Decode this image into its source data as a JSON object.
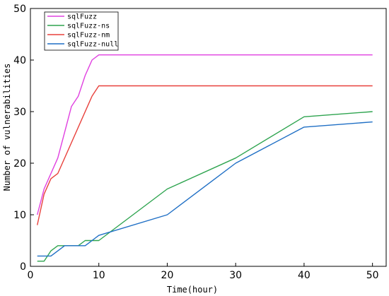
{
  "chart_data": {
    "type": "line",
    "title": "",
    "xlabel": "Time(hour)",
    "ylabel": "Number of vulnerabilities",
    "xlim": [
      0,
      52
    ],
    "ylim": [
      0,
      50
    ],
    "xticks": [
      0,
      10,
      20,
      30,
      40,
      50
    ],
    "yticks": [
      0,
      10,
      20,
      30,
      40,
      50
    ],
    "grid": false,
    "legend_position": "top-left",
    "series": [
      {
        "name": "sqlFuzz",
        "color": "#e040e0",
        "points": [
          [
            1,
            10
          ],
          [
            2,
            15
          ],
          [
            3,
            18
          ],
          [
            4,
            21
          ],
          [
            5,
            26
          ],
          [
            6,
            31
          ],
          [
            7,
            33
          ],
          [
            8,
            37
          ],
          [
            9,
            40
          ],
          [
            10,
            41
          ],
          [
            20,
            41
          ],
          [
            30,
            41
          ],
          [
            40,
            41
          ],
          [
            50,
            41
          ]
        ]
      },
      {
        "name": "sqlFuzz-ns",
        "color": "#2ea44f",
        "points": [
          [
            1,
            1
          ],
          [
            2,
            1
          ],
          [
            3,
            3
          ],
          [
            4,
            4
          ],
          [
            5,
            4
          ],
          [
            7,
            4
          ],
          [
            8,
            5
          ],
          [
            10,
            5
          ],
          [
            20,
            15
          ],
          [
            30,
            21
          ],
          [
            40,
            29
          ],
          [
            50,
            30
          ]
        ]
      },
      {
        "name": "sqlFuzz-nm",
        "color": "#e8413c",
        "points": [
          [
            1,
            8
          ],
          [
            2,
            14
          ],
          [
            3,
            17
          ],
          [
            4,
            18
          ],
          [
            9,
            33
          ],
          [
            10,
            35
          ],
          [
            20,
            35
          ],
          [
            30,
            35
          ],
          [
            40,
            35
          ],
          [
            50,
            35
          ]
        ]
      },
      {
        "name": "sqlFuzz-null",
        "color": "#1f6fc5",
        "points": [
          [
            1,
            2
          ],
          [
            2,
            2
          ],
          [
            3,
            2
          ],
          [
            5,
            4
          ],
          [
            6,
            4
          ],
          [
            8,
            4
          ],
          [
            9,
            5
          ],
          [
            10,
            6
          ],
          [
            20,
            10
          ],
          [
            30,
            20
          ],
          [
            40,
            27
          ],
          [
            50,
            28
          ]
        ]
      }
    ]
  }
}
